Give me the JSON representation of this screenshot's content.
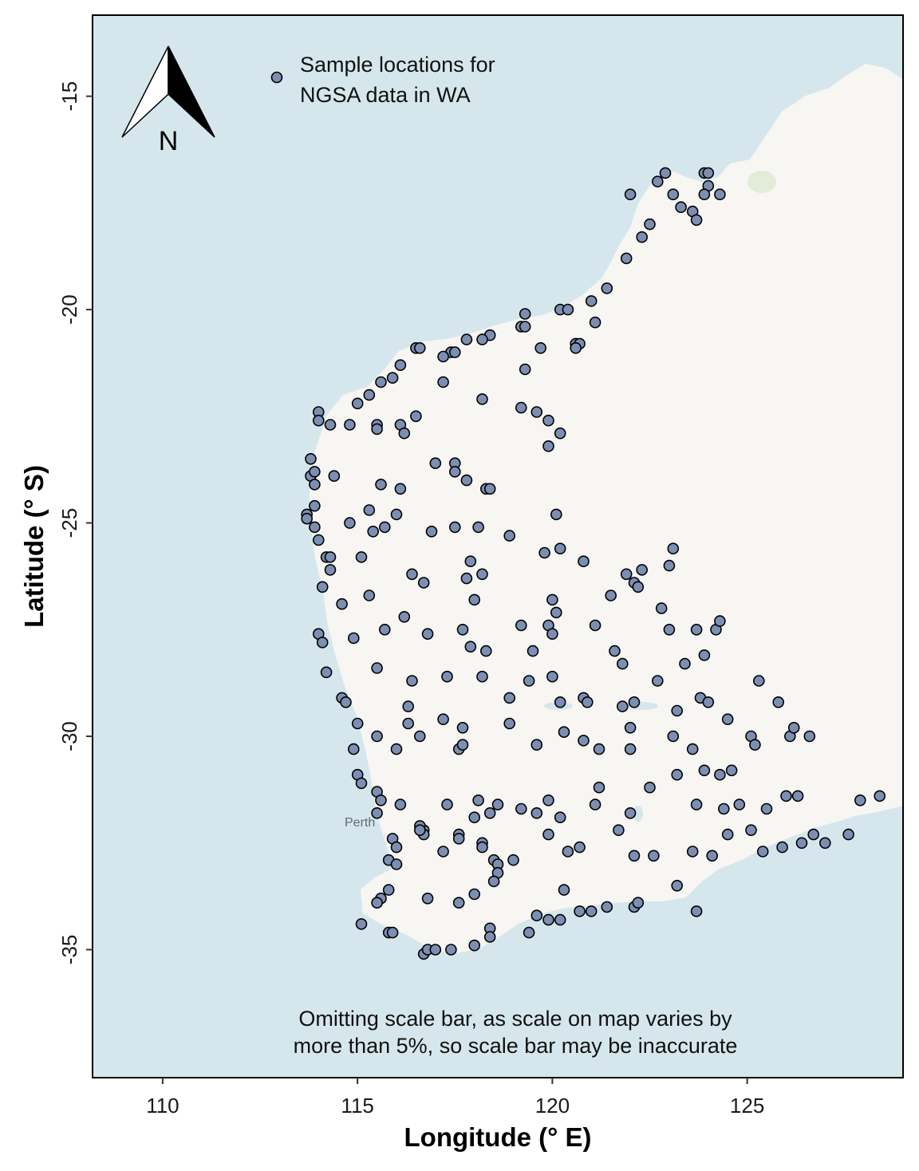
{
  "chart_data": {
    "type": "scatter",
    "xlabel": "Longitude (° E)",
    "ylabel": "Latitude (° S)",
    "xlim": [
      108.2,
      129.0
    ],
    "ylim": [
      -38.0,
      -13.1
    ],
    "xticks": [
      110,
      115,
      120,
      125
    ],
    "yticks": [
      -15,
      -20,
      -25,
      -30,
      -35
    ],
    "legend": {
      "label_line1": "Sample locations for",
      "label_line2": "NGSA data in WA",
      "placement": "top-left"
    },
    "north_arrow": {
      "label": "N"
    },
    "note": {
      "line1": "Omitting scale bar, as scale on map varies by",
      "line2": "more than 5%, so scale bar may be inaccurate"
    },
    "basemap_labels": [
      {
        "text": "Perth",
        "lon": 115.86,
        "lat": -31.95
      }
    ],
    "colors": {
      "ocean": "#d5e7ec",
      "land": "#f8f6f2",
      "point_fill": "#7c8fb3",
      "point_stroke": "#000000"
    },
    "points": [
      [
        122.0,
        -17.3
      ],
      [
        122.7,
        -17.0
      ],
      [
        122.9,
        -16.8
      ],
      [
        123.1,
        -17.3
      ],
      [
        123.3,
        -17.6
      ],
      [
        123.6,
        -17.7
      ],
      [
        123.7,
        -17.9
      ],
      [
        123.9,
        -16.8
      ],
      [
        124.0,
        -16.8
      ],
      [
        124.0,
        -17.1
      ],
      [
        123.9,
        -17.3
      ],
      [
        124.3,
        -17.3
      ],
      [
        122.5,
        -18.0
      ],
      [
        122.3,
        -18.3
      ],
      [
        121.9,
        -18.8
      ],
      [
        121.4,
        -19.5
      ],
      [
        121.0,
        -19.8
      ],
      [
        120.2,
        -20.0
      ],
      [
        120.4,
        -20.0
      ],
      [
        121.1,
        -20.3
      ],
      [
        119.3,
        -20.1
      ],
      [
        119.2,
        -20.4
      ],
      [
        119.3,
        -20.4
      ],
      [
        119.7,
        -20.9
      ],
      [
        120.6,
        -20.8
      ],
      [
        120.7,
        -20.8
      ],
      [
        120.6,
        -20.9
      ],
      [
        119.3,
        -21.4
      ],
      [
        118.4,
        -20.6
      ],
      [
        118.2,
        -20.7
      ],
      [
        117.8,
        -20.7
      ],
      [
        117.4,
        -21.0
      ],
      [
        117.5,
        -21.0
      ],
      [
        117.2,
        -21.1
      ],
      [
        116.5,
        -20.9
      ],
      [
        116.6,
        -20.9
      ],
      [
        116.1,
        -21.3
      ],
      [
        115.9,
        -21.6
      ],
      [
        115.6,
        -21.7
      ],
      [
        115.3,
        -22.0
      ],
      [
        115.0,
        -22.2
      ],
      [
        117.2,
        -21.7
      ],
      [
        118.2,
        -22.1
      ],
      [
        114.0,
        -22.4
      ],
      [
        114.0,
        -22.6
      ],
      [
        114.3,
        -22.7
      ],
      [
        114.8,
        -22.7
      ],
      [
        115.5,
        -22.7
      ],
      [
        115.5,
        -22.8
      ],
      [
        116.1,
        -22.7
      ],
      [
        116.2,
        -22.9
      ],
      [
        116.5,
        -22.5
      ],
      [
        119.2,
        -22.3
      ],
      [
        119.6,
        -22.4
      ],
      [
        119.9,
        -22.6
      ],
      [
        120.2,
        -22.9
      ],
      [
        119.9,
        -23.2
      ],
      [
        113.8,
        -23.5
      ],
      [
        113.8,
        -23.9
      ],
      [
        113.9,
        -24.1
      ],
      [
        113.9,
        -23.8
      ],
      [
        114.4,
        -23.9
      ],
      [
        117.0,
        -23.6
      ],
      [
        117.5,
        -23.6
      ],
      [
        117.5,
        -23.8
      ],
      [
        117.8,
        -24.0
      ],
      [
        118.3,
        -24.2
      ],
      [
        118.4,
        -24.2
      ],
      [
        115.6,
        -24.1
      ],
      [
        116.1,
        -24.2
      ],
      [
        113.9,
        -24.6
      ],
      [
        113.7,
        -24.8
      ],
      [
        113.7,
        -24.9
      ],
      [
        113.9,
        -25.1
      ],
      [
        114.0,
        -25.4
      ],
      [
        114.2,
        -25.8
      ],
      [
        114.3,
        -25.8
      ],
      [
        114.3,
        -26.1
      ],
      [
        114.1,
        -26.5
      ],
      [
        114.8,
        -25.0
      ],
      [
        115.3,
        -24.7
      ],
      [
        115.4,
        -25.2
      ],
      [
        115.7,
        -25.1
      ],
      [
        116.0,
        -24.8
      ],
      [
        116.9,
        -25.2
      ],
      [
        117.5,
        -25.1
      ],
      [
        118.1,
        -25.1
      ],
      [
        118.9,
        -25.3
      ],
      [
        120.1,
        -24.8
      ],
      [
        120.2,
        -25.6
      ],
      [
        119.8,
        -25.7
      ],
      [
        120.8,
        -25.9
      ],
      [
        115.1,
        -25.8
      ],
      [
        116.4,
        -26.2
      ],
      [
        116.7,
        -26.4
      ],
      [
        117.9,
        -25.9
      ],
      [
        117.8,
        -26.3
      ],
      [
        118.2,
        -26.2
      ],
      [
        118.0,
        -26.8
      ],
      [
        121.9,
        -26.2
      ],
      [
        122.1,
        -26.4
      ],
      [
        122.3,
        -26.1
      ],
      [
        122.2,
        -26.5
      ],
      [
        121.5,
        -26.7
      ],
      [
        123.1,
        -25.6
      ],
      [
        123.0,
        -26.0
      ],
      [
        120.0,
        -26.8
      ],
      [
        120.1,
        -27.1
      ],
      [
        114.6,
        -26.9
      ],
      [
        115.3,
        -26.7
      ],
      [
        114.0,
        -27.6
      ],
      [
        114.1,
        -27.8
      ],
      [
        114.2,
        -28.5
      ],
      [
        114.9,
        -27.7
      ],
      [
        115.7,
        -27.5
      ],
      [
        116.2,
        -27.2
      ],
      [
        116.8,
        -27.6
      ],
      [
        117.7,
        -27.5
      ],
      [
        117.9,
        -27.9
      ],
      [
        118.3,
        -28.0
      ],
      [
        119.2,
        -27.4
      ],
      [
        119.9,
        -27.4
      ],
      [
        120.0,
        -27.6
      ],
      [
        119.5,
        -28.0
      ],
      [
        121.1,
        -27.4
      ],
      [
        121.6,
        -28.0
      ],
      [
        121.8,
        -28.3
      ],
      [
        122.8,
        -27.0
      ],
      [
        123.0,
        -27.5
      ],
      [
        123.7,
        -27.5
      ],
      [
        124.2,
        -27.5
      ],
      [
        124.3,
        -27.3
      ],
      [
        123.4,
        -28.3
      ],
      [
        123.9,
        -28.1
      ],
      [
        115.5,
        -28.4
      ],
      [
        116.4,
        -28.7
      ],
      [
        117.3,
        -28.6
      ],
      [
        118.2,
        -28.6
      ],
      [
        119.4,
        -28.7
      ],
      [
        120.0,
        -28.6
      ],
      [
        118.9,
        -29.1
      ],
      [
        114.6,
        -29.1
      ],
      [
        114.7,
        -29.2
      ],
      [
        116.3,
        -29.3
      ],
      [
        117.2,
        -29.6
      ],
      [
        120.2,
        -29.2
      ],
      [
        120.8,
        -29.1
      ],
      [
        120.9,
        -29.2
      ],
      [
        121.8,
        -29.3
      ],
      [
        122.1,
        -29.2
      ],
      [
        122.7,
        -28.7
      ],
      [
        123.2,
        -29.4
      ],
      [
        123.8,
        -29.1
      ],
      [
        124.0,
        -29.2
      ],
      [
        125.3,
        -28.7
      ],
      [
        125.8,
        -29.2
      ],
      [
        124.5,
        -29.6
      ],
      [
        115.0,
        -29.7
      ],
      [
        114.9,
        -30.3
      ],
      [
        115.5,
        -30.0
      ],
      [
        116.0,
        -30.3
      ],
      [
        116.3,
        -29.7
      ],
      [
        116.6,
        -30.0
      ],
      [
        117.7,
        -29.8
      ],
      [
        117.6,
        -30.3
      ],
      [
        117.7,
        -30.2
      ],
      [
        118.9,
        -29.7
      ],
      [
        119.6,
        -30.2
      ],
      [
        120.3,
        -29.9
      ],
      [
        120.8,
        -30.1
      ],
      [
        121.2,
        -30.3
      ],
      [
        122.0,
        -29.8
      ],
      [
        122.0,
        -30.3
      ],
      [
        123.1,
        -30.0
      ],
      [
        123.6,
        -30.3
      ],
      [
        125.1,
        -30.0
      ],
      [
        125.2,
        -30.2
      ],
      [
        126.1,
        -30.0
      ],
      [
        126.2,
        -29.8
      ],
      [
        126.6,
        -30.0
      ],
      [
        115.0,
        -30.9
      ],
      [
        115.1,
        -31.1
      ],
      [
        115.5,
        -31.3
      ],
      [
        115.6,
        -31.5
      ],
      [
        116.1,
        -31.6
      ],
      [
        116.7,
        -32.2
      ],
      [
        116.7,
        -32.3
      ],
      [
        115.5,
        -31.8
      ],
      [
        117.3,
        -31.6
      ],
      [
        117.6,
        -32.3
      ],
      [
        118.0,
        -31.9
      ],
      [
        118.1,
        -31.5
      ],
      [
        118.4,
        -31.8
      ],
      [
        118.6,
        -31.6
      ],
      [
        119.2,
        -31.7
      ],
      [
        119.6,
        -31.8
      ],
      [
        119.9,
        -31.5
      ],
      [
        120.2,
        -31.9
      ],
      [
        121.2,
        -31.2
      ],
      [
        121.1,
        -31.6
      ],
      [
        122.0,
        -31.8
      ],
      [
        122.5,
        -31.2
      ],
      [
        123.2,
        -30.9
      ],
      [
        123.9,
        -30.8
      ],
      [
        124.3,
        -30.9
      ],
      [
        124.6,
        -30.8
      ],
      [
        123.7,
        -31.6
      ],
      [
        124.4,
        -31.7
      ],
      [
        124.8,
        -31.6
      ],
      [
        125.5,
        -31.7
      ],
      [
        126.0,
        -31.4
      ],
      [
        126.3,
        -31.4
      ],
      [
        127.9,
        -31.5
      ],
      [
        128.4,
        -31.4
      ],
      [
        115.9,
        -32.4
      ],
      [
        116.0,
        -32.6
      ],
      [
        115.8,
        -32.9
      ],
      [
        116.0,
        -33.0
      ],
      [
        116.6,
        -32.1
      ],
      [
        116.6,
        -32.2
      ],
      [
        117.2,
        -32.7
      ],
      [
        117.6,
        -32.4
      ],
      [
        118.2,
        -32.5
      ],
      [
        118.2,
        -32.6
      ],
      [
        118.5,
        -32.9
      ],
      [
        118.6,
        -33.0
      ],
      [
        119.0,
        -32.9
      ],
      [
        119.9,
        -32.3
      ],
      [
        120.4,
        -32.7
      ],
      [
        120.7,
        -32.6
      ],
      [
        121.7,
        -32.2
      ],
      [
        122.1,
        -32.8
      ],
      [
        122.6,
        -32.8
      ],
      [
        123.6,
        -32.7
      ],
      [
        124.1,
        -32.8
      ],
      [
        124.5,
        -32.3
      ],
      [
        125.1,
        -32.2
      ],
      [
        125.4,
        -32.7
      ],
      [
        125.9,
        -32.6
      ],
      [
        126.4,
        -32.5
      ],
      [
        126.7,
        -32.3
      ],
      [
        127.0,
        -32.5
      ],
      [
        127.6,
        -32.3
      ],
      [
        118.6,
        -33.2
      ],
      [
        118.5,
        -33.4
      ],
      [
        120.3,
        -33.6
      ],
      [
        118.0,
        -33.7
      ],
      [
        116.8,
        -33.8
      ],
      [
        115.8,
        -33.6
      ],
      [
        115.6,
        -33.8
      ],
      [
        115.5,
        -33.9
      ],
      [
        117.6,
        -33.9
      ],
      [
        119.6,
        -34.2
      ],
      [
        119.9,
        -34.3
      ],
      [
        120.2,
        -34.3
      ],
      [
        120.7,
        -34.1
      ],
      [
        121.0,
        -34.1
      ],
      [
        121.4,
        -34.0
      ],
      [
        122.1,
        -34.0
      ],
      [
        122.2,
        -33.9
      ],
      [
        123.2,
        -33.5
      ],
      [
        123.7,
        -34.1
      ],
      [
        115.1,
        -34.4
      ],
      [
        115.8,
        -34.6
      ],
      [
        115.9,
        -34.6
      ],
      [
        118.4,
        -34.5
      ],
      [
        118.4,
        -34.7
      ],
      [
        119.4,
        -34.6
      ],
      [
        116.7,
        -35.1
      ],
      [
        116.8,
        -35.0
      ],
      [
        117.0,
        -35.0
      ],
      [
        117.4,
        -35.0
      ],
      [
        118.0,
        -34.9
      ]
    ]
  }
}
